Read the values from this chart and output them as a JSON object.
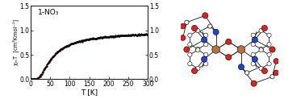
{
  "label": "1-NO₃",
  "xlabel": "T [K]",
  "ylabel_left": "χₘT  [cm³Kmol⁻¹]",
  "xlim": [
    0,
    300
  ],
  "ylim": [
    0.0,
    1.5
  ],
  "T_min": 2,
  "T_max": 300,
  "n_points": 200,
  "J": -50.0,
  "g": 2.1,
  "line_color_fit": "#e03030",
  "tick_fontsize": 5.5,
  "label_fontsize": 6.5,
  "annot_fontsize": 6.5,
  "atom_colors": {
    "Cu": "#b87040",
    "N": "#2244cc",
    "O": "#dd2222",
    "C": "#222222",
    "H": "#888888"
  }
}
